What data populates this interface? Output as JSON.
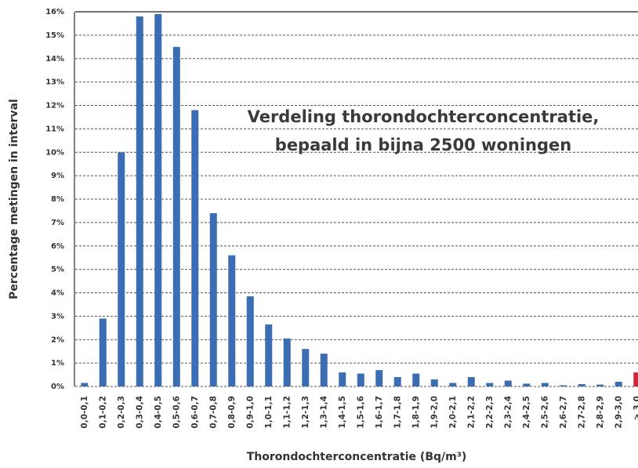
{
  "chart_data": {
    "type": "bar",
    "title": [
      "Verdeling thorondochterconcentratie,",
      "bepaald in bijna 2500 woningen"
    ],
    "y_label": "Percentage metingen in interval",
    "x_label": "Thorondochterconcentratie (Bq/m³)",
    "categories": [
      "0,0-0,1",
      "0,1-0,2",
      "0,2-0,3",
      "0,3-0,4",
      "0,4-0,5",
      "0,5-0,6",
      "0,6-0,7",
      "0,7-0,8",
      "0,8-0,9",
      "0,9-1,0",
      "1,0-1,1",
      "1,1-1,2",
      "1,2-1,3",
      "1,3-1,4",
      "1,4-1,5",
      "1,5-1,6",
      "1,6-1,7",
      "1,7-1,8",
      "1,8-1,9",
      "1,9-2,0",
      "2,0-2,1",
      "2,1-2,2",
      "2,2-2,3",
      "2,3-2,4",
      "2,4-2,5",
      "2,5-2,6",
      "2,6-2,7",
      "2,7-2,8",
      "2,8-2,9",
      "2,9-3,0",
      "> 3,0"
    ],
    "values": [
      0.15,
      2.9,
      10.0,
      15.8,
      15.9,
      14.5,
      11.8,
      7.4,
      5.6,
      3.85,
      2.65,
      2.05,
      1.6,
      1.4,
      0.6,
      0.55,
      0.7,
      0.4,
      0.55,
      0.3,
      0.15,
      0.4,
      0.15,
      0.25,
      0.12,
      0.15,
      0.05,
      0.1,
      0.08,
      0.2,
      0.6
    ],
    "colors": [
      "#3b6db3",
      "#3b6db3",
      "#3b6db3",
      "#3b6db3",
      "#3b6db3",
      "#3b6db3",
      "#3b6db3",
      "#3b6db3",
      "#3b6db3",
      "#3b6db3",
      "#3b6db3",
      "#3b6db3",
      "#3b6db3",
      "#3b6db3",
      "#3b6db3",
      "#3b6db3",
      "#3b6db3",
      "#3b6db3",
      "#3b6db3",
      "#3b6db3",
      "#3b6db3",
      "#3b6db3",
      "#3b6db3",
      "#3b6db3",
      "#3b6db3",
      "#3b6db3",
      "#3b6db3",
      "#3b6db3",
      "#3b6db3",
      "#3b6db3",
      "#d0263a"
    ],
    "ylim": [
      0,
      16
    ],
    "yticks": [
      {
        "value": 0,
        "label": "0%"
      },
      {
        "value": 1,
        "label": "1%"
      },
      {
        "value": 2,
        "label": "2%"
      },
      {
        "value": 3,
        "label": "3%"
      },
      {
        "value": 4,
        "label": "4%"
      },
      {
        "value": 5,
        "label": "5%"
      },
      {
        "value": 6,
        "label": "6%"
      },
      {
        "value": 7,
        "label": "7%"
      },
      {
        "value": 8,
        "label": "8%"
      },
      {
        "value": 9,
        "label": "9%"
      },
      {
        "value": 10,
        "label": "10%"
      },
      {
        "value": 11,
        "label": "11%"
      },
      {
        "value": 12,
        "label": "12%"
      },
      {
        "value": 13,
        "label": "13%"
      },
      {
        "value": 14,
        "label": "14%"
      },
      {
        "value": 15,
        "label": "15%"
      },
      {
        "value": 16,
        "label": "16%"
      }
    ],
    "grid": true
  }
}
